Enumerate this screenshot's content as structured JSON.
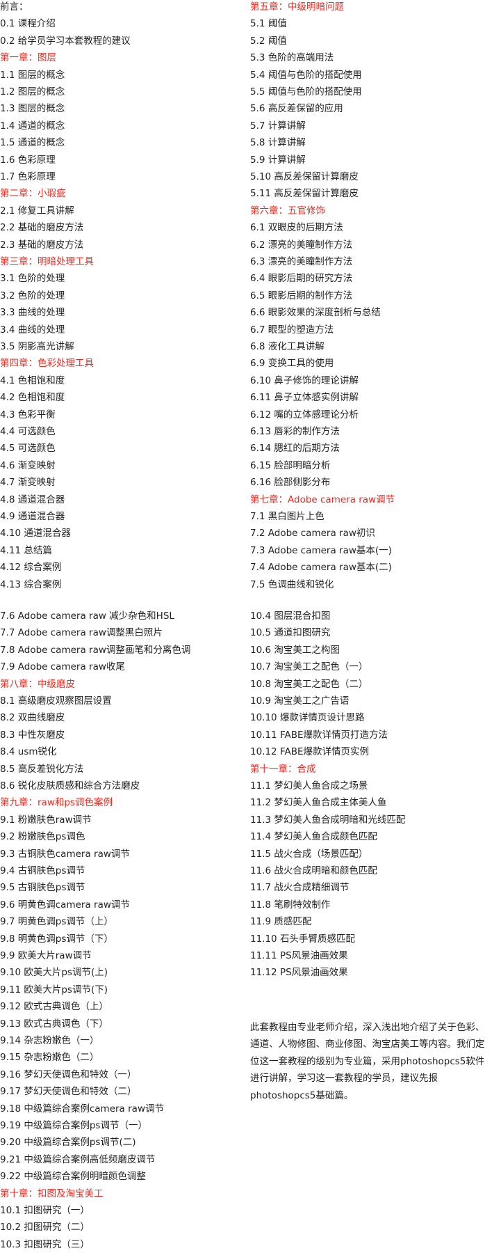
{
  "columns": [
    {
      "items": [
        "前言：",
        "0.1 课程介绍",
        "0.2 给学员学习本套教程的建议",
        {
          "text": "第一章：图层",
          "color": "#f0281e"
        },
        "1.1 图层的概念",
        "1.2 图层的概念",
        "1.3 图层的概念",
        "1.4 通道的概念",
        "1.5 通道的概念",
        "1.6 色彩原理",
        "1.7 色彩原理",
        {
          "text": "第二章：小瑕疵",
          "color": "#f0281e"
        },
        "2.1 修复工具讲解",
        "2.2 基础的磨皮方法",
        "2.3 基础的磨皮方法",
        {
          "text": "第三章：明暗处理工具",
          "color": "#f0281e"
        },
        "3.1 色阶的处理",
        "3.2 色阶的处理",
        "3.3 曲线的处理",
        "3.4 曲线的处理",
        "3.5 阴影高光讲解",
        {
          "text": "第四章：色彩处理工具",
          "color": "#f0281e"
        },
        "4.1 色相饱和度",
        "4.2 色相饱和度",
        "4.3 色彩平衡",
        "4.4 可选颜色",
        "4.5 可选颜色",
        "4.6 渐变映射",
        "4.7 渐变映射",
        "4.8 通道混合器",
        "4.9 通道混合器",
        "4.10 通道混合器",
        "4.11 总结篇",
        "4.12 综合案例",
        "4.13 综合案例"
      ]
    },
    {
      "items": [
        {
          "text": "第五章：中级明暗问题",
          "color": "#f0281e"
        },
        "5.1 阈值",
        "5.2 阈值",
        "5.3 色阶的高端用法",
        "5.4 阈值与色阶的搭配使用",
        "5.5 阈值与色阶的搭配使用",
        "5.6 高反差保留的应用",
        "5.7 计算讲解",
        "5.8 计算讲解",
        "5.9 计算讲解",
        "5.10 高反差保留计算磨皮",
        "5.11 高反差保留计算磨皮",
        {
          "text": "第六章：五官修饰",
          "color": "#f0281e"
        },
        "6.1 双眼皮的后期方法",
        "6.2 漂亮的美瞳制作方法",
        "6.3 漂亮的美瞳制作方法",
        "6.4 眼影后期的研究方法",
        "6.5 眼影后期的制作方法",
        "6.6 眼影效果的深度剖析与总结",
        "6.7 眼型的塑造方法",
        "6.8 液化工具讲解",
        "6.9 变换工具的使用",
        "6.10 鼻子修饰的理论讲解",
        "6.11 鼻子立体感实例讲解",
        "6.12 嘴的立体感理论分析",
        "6.13 唇彩的制作方法",
        "6.14 腮红的后期方法",
        "6.15 脸部明暗分析",
        "6.16 脸部侧影分布",
        {
          "text": "第七章：Adobe camera raw调节",
          "color": "#f0281e"
        },
        "7.1 黑白图片上色",
        "7.2 Adobe camera raw初识",
        "7.3 Adobe camera raw基本(一)",
        "7.4 Adobe camera raw基本(二)",
        "7.5 色调曲线和锐化"
      ]
    },
    {
      "items": [
        "7.6 Adobe camera raw 减少杂色和HSL",
        "7.7 Adobe camera raw调整黑白照片",
        "7.8 Adobe camera raw调整画笔和分离色调",
        "7.9 Adobe camera raw收尾",
        {
          "text": "第八章：中级磨皮",
          "color": "#f0281e"
        },
        "8.1 高级磨皮观察图层设置",
        "8.2 双曲线磨皮",
        "8.3 中性灰磨皮",
        "8.4 usm锐化",
        "8.5 高反差锐化方法",
        "8.6 锐化皮肤质感和综合方法磨皮",
        {
          "text": "第九章：raw和ps调色案例",
          "color": "#f0281e"
        },
        "9.1 粉嫩肤色raw调节",
        "9.2 粉嫩肤色ps调色",
        "9.3 古铜肤色camera raw调节",
        "9.4 古铜肤色ps调节",
        "9.5 古铜肤色ps调节",
        "9.6 明黄色调camera raw调节",
        "9.7 明黄色调ps调节（上）",
        "9.8 明黄色调ps调节（下）",
        "9.9 欧美大片raw调节",
        "9.10 欧美大片ps调节(上)",
        "9.11 欧美大片ps调节(下)",
        "9.12 欧式古典调色（上）",
        "9.13 欧式古典调色（下）",
        "9.14 杂志粉嫩色（一）",
        "9.15 杂志粉嫩色（二）",
        "9.16 梦幻天使调色和特效（一）",
        "9.17 梦幻天使调色和特效（二）",
        "9.18 中级篇综合案例camera raw调节",
        "9.19 中级篇综合案例ps调节（一）",
        "9.20 中级篇综合案例ps调节(二)",
        "9.21 中级篇综合案例高低频磨皮调节",
        "9.22 中级篇综合案例明暗颜色调整",
        {
          "text": "第十章：扣图及淘宝美工",
          "color": "#f0281e"
        },
        "10.1 扣图研究（一）",
        "10.2 扣图研究（二）",
        "10.3 扣图研究（三）"
      ]
    },
    {
      "items": [
        "10.4 图层混合扣图",
        "10.5 通道扣图研究",
        "10.6 淘宝美工之构图",
        "10.7 淘宝美工之配色（一）",
        "10.8 淘宝美工之配色（二）",
        "10.9 淘宝美工之广告语",
        "10.10 爆款详情页设计思路",
        "10.11 FABE爆款详情页打造方法",
        "10.12 FABE爆款详情页实例",
        {
          "text": "第十一章：合成",
          "color": "#f0281e"
        },
        "11.1 梦幻美人鱼合成之场景",
        "11.2 梦幻美人鱼合成主体美人鱼",
        "11.3 梦幻美人鱼合成明暗和光线匹配",
        "11.4 梦幻美人鱼合成颜色匹配",
        "11.5 战火合成（场景匹配）",
        "11.6 战火合成明暗和颜色匹配",
        "11.7 战火合成精细调节",
        "11.8 笔刷特效制作",
        "11.9 质感匹配",
        "11.10 石头手臂质感匹配",
        "11.11 PS风景油画效果",
        "11.12 PS风景油画效果"
      ]
    }
  ],
  "note": "此套教程由专业老师介绍，深入浅出地介绍了关于色彩、通道、人物修图、商业修图、淘宝店美工等内容。我们定位这一套教程的级别为专业篇，采用photoshopcs5软件进行讲解，学习这一套教程的学员，建议先报photoshopcs5基础篇。"
}
